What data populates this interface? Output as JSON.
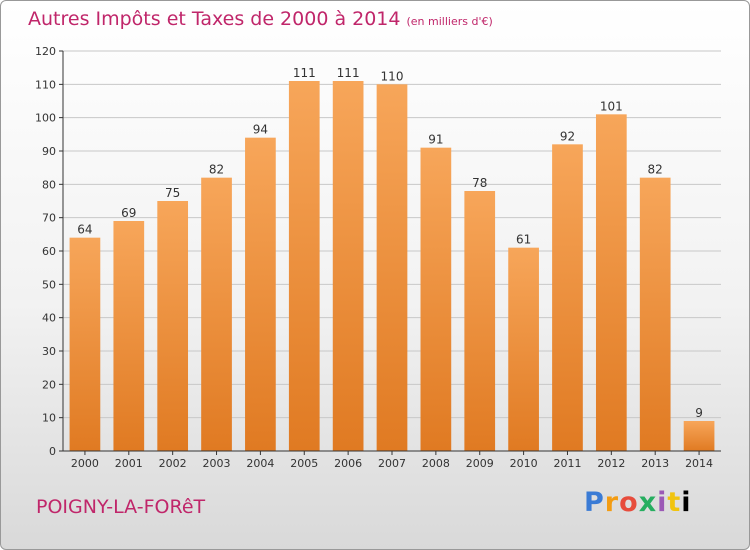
{
  "title": "Autres Impôts et Taxes de 2000 à 2014",
  "subtitle": "(en milliers d'€)",
  "commune": "POIGNY-LA-FORêT",
  "logo": [
    "P",
    "r",
    "o",
    "x",
    "i",
    "t",
    "i"
  ],
  "colors": {
    "title": "#c0266a",
    "bar_light": "#f7a65a",
    "bar_dark": "#e07a22",
    "grid": "#c8c8c8",
    "axis": "#333333"
  },
  "chart_data": {
    "type": "bar",
    "categories": [
      "2000",
      "2001",
      "2002",
      "2003",
      "2004",
      "2005",
      "2006",
      "2007",
      "2008",
      "2009",
      "2010",
      "2011",
      "2012",
      "2013",
      "2014"
    ],
    "values": [
      64,
      69,
      75,
      82,
      94,
      111,
      111,
      110,
      91,
      78,
      61,
      92,
      101,
      82,
      9
    ],
    "ylim": [
      0,
      120
    ],
    "yticks": [
      0,
      10,
      20,
      30,
      40,
      50,
      60,
      70,
      80,
      90,
      100,
      110,
      120
    ],
    "grid": true,
    "xlabel": "",
    "ylabel": ""
  }
}
